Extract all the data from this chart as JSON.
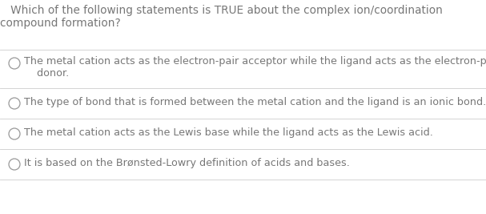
{
  "background_color": "#ffffff",
  "question_line1": "   Which of the following statements is TRUE about the complex ion/coordination",
  "question_line2": "compound formation?",
  "question_fontsize": 9.8,
  "question_color": "#777777",
  "options": [
    [
      "The metal cation acts as the electron-pair acceptor while the ligand acts as the electron-pair",
      "    donor."
    ],
    [
      "The type of bond that is formed between the metal cation and the ligand is an ionic bond."
    ],
    [
      "The metal cation acts as the Lewis base while the ligand acts as the Lewis acid."
    ],
    [
      "It is based on the Brønsted-Lowry definition of acids and bases."
    ]
  ],
  "option_fontsize": 9.2,
  "option_color": "#777777",
  "circle_color": "#999999",
  "divider_color": "#cccccc",
  "divider_linewidth": 0.6,
  "fig_width": 6.07,
  "fig_height": 2.67,
  "dpi": 100
}
